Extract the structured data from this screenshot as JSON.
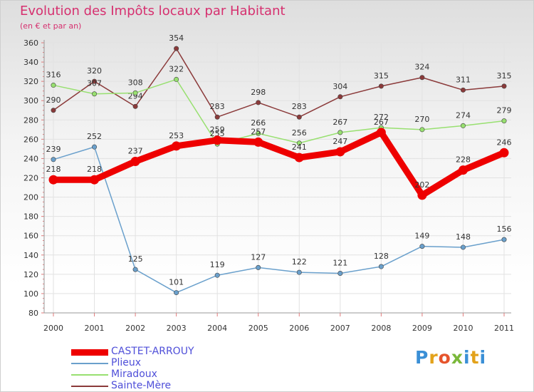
{
  "title": "Evolution des Impôts locaux par Habitant",
  "subtitle": "(en € et par an)",
  "logo_text": "Proxiti",
  "chart_data": {
    "type": "line",
    "title": "Evolution des Impôts locaux par Habitant",
    "ylabel": "(en € et par an)",
    "xlabel": "",
    "categories": [
      "2000",
      "2001",
      "2002",
      "2003",
      "2004",
      "2005",
      "2006",
      "2007",
      "2008",
      "2009",
      "2010",
      "2011"
    ],
    "ylim": [
      80,
      360
    ],
    "yticks": [
      80,
      100,
      120,
      140,
      160,
      180,
      200,
      220,
      240,
      260,
      280,
      300,
      320,
      340,
      360
    ],
    "grid": true,
    "legend": "bottom-left",
    "series": [
      {
        "name": "CASTET-ARROUY",
        "color": "#ee0000",
        "emphasis": true,
        "values": [
          218,
          218,
          237,
          253,
          259,
          257,
          241,
          247,
          267,
          202,
          228,
          246
        ]
      },
      {
        "name": "Plieux",
        "color": "#6aa0cc",
        "emphasis": false,
        "values": [
          239,
          252,
          125,
          101,
          119,
          127,
          122,
          121,
          128,
          149,
          148,
          156
        ]
      },
      {
        "name": "Miradoux",
        "color": "#98e070",
        "emphasis": false,
        "values": [
          316,
          307,
          308,
          322,
          255,
          266,
          256,
          267,
          272,
          270,
          274,
          279
        ]
      },
      {
        "name": "Sainte-Mère",
        "color": "#8b3a3a",
        "emphasis": false,
        "values": [
          290,
          320,
          294,
          354,
          283,
          298,
          283,
          304,
          315,
          324,
          311,
          315
        ]
      }
    ]
  }
}
